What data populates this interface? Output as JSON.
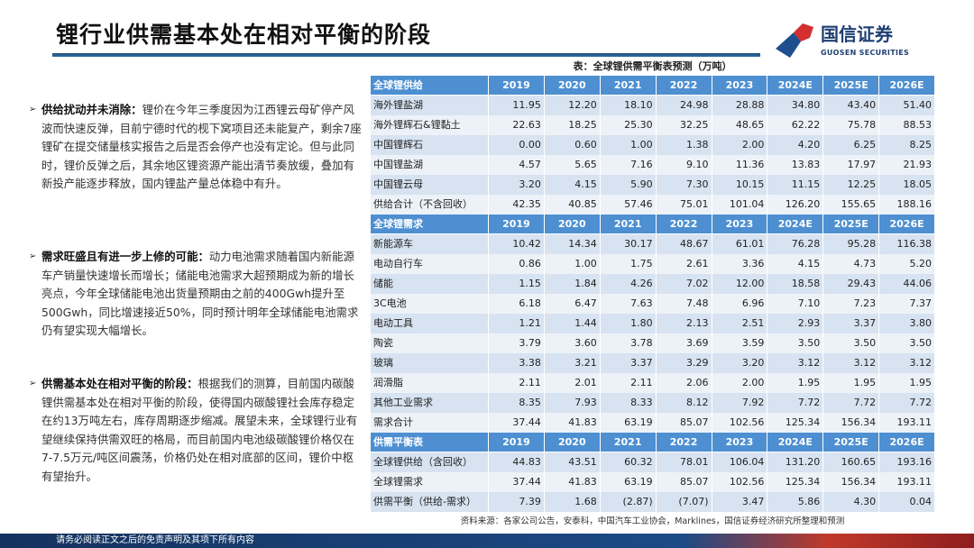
{
  "header": {
    "title": "锂行业供需基本处在相对平衡的阶段",
    "logo_cn": "国信证券",
    "logo_en": "GUOSEN SECURITIES"
  },
  "bullets": [
    {
      "bold": "供给扰动并未消除：",
      "text": "锂价在今年三季度因为江西锂云母矿停产风波而快速反弹，目前宁德时代的枧下窝项目还未能复产，剩余7座锂矿在提交储量核实报告之后是否会停产也没有定论。但与此同时，锂价反弹之后，其余地区锂资源产能出清节奏放缓，叠加有新投产能逐步释放，国内锂盐产量总体稳中有升。"
    },
    {
      "bold": "需求旺盛且有进一步上修的可能：",
      "text": "动力电池需求随着国内新能源车产销量快速增长而增长；储能电池需求大超预期成为新的增长亮点，今年全球储能电池出货量预期由之前的400Gwh提升至500Gwh，同比增速接近50%，同时预计明年全球储能电池需求仍有望实现大幅增长。"
    },
    {
      "bold": "供需基本处在相对平衡的阶段：",
      "text": "根据我们的测算，目前国内碳酸锂供需基本处在相对平衡的阶段，使得国内碳酸锂社会库存稳定在约13万吨左右，库存周期逐步缩减。展望未来，全球锂行业有望继续保持供需双旺的格局，而目前国内电池级碳酸锂价格仅在7-7.5万元/吨区间震荡，价格仍处在相对底部的区间，锂价中枢有望抬升。"
    }
  ],
  "table": {
    "caption": "表：全球锂供需平衡表预测（万吨）",
    "years": [
      "2019",
      "2020",
      "2021",
      "2022",
      "2023",
      "2024E",
      "2025E",
      "2026E"
    ],
    "sections": [
      {
        "title": "全球锂供给",
        "rows": [
          {
            "label": "海外锂盐湖",
            "values": [
              "11.95",
              "12.20",
              "18.10",
              "24.98",
              "28.88",
              "34.80",
              "43.40",
              "51.40"
            ]
          },
          {
            "label": "海外锂辉石&锂黏土",
            "values": [
              "22.63",
              "18.25",
              "25.30",
              "32.25",
              "48.65",
              "62.22",
              "75.78",
              "88.53"
            ]
          },
          {
            "label": "中国锂辉石",
            "values": [
              "0.00",
              "0.60",
              "1.00",
              "1.38",
              "2.00",
              "4.20",
              "6.25",
              "8.25"
            ]
          },
          {
            "label": "中国锂盐湖",
            "values": [
              "4.57",
              "5.65",
              "7.16",
              "9.10",
              "11.36",
              "13.83",
              "17.97",
              "21.93"
            ]
          },
          {
            "label": "中国锂云母",
            "values": [
              "3.20",
              "4.15",
              "5.90",
              "7.30",
              "10.15",
              "11.15",
              "12.25",
              "18.05"
            ]
          },
          {
            "label": "供给合计（不含回收）",
            "values": [
              "42.35",
              "40.85",
              "57.46",
              "75.01",
              "101.04",
              "126.20",
              "155.65",
              "188.16"
            ]
          }
        ]
      },
      {
        "title": "全球锂需求",
        "rows": [
          {
            "label": "新能源车",
            "values": [
              "10.42",
              "14.34",
              "30.17",
              "48.67",
              "61.01",
              "76.28",
              "95.28",
              "116.38"
            ]
          },
          {
            "label": "电动自行车",
            "values": [
              "0.86",
              "1.00",
              "1.75",
              "2.61",
              "3.36",
              "4.15",
              "4.73",
              "5.20"
            ]
          },
          {
            "label": "储能",
            "values": [
              "1.15",
              "1.84",
              "4.26",
              "7.02",
              "12.00",
              "18.58",
              "29.43",
              "44.06"
            ]
          },
          {
            "label": "3C电池",
            "values": [
              "6.18",
              "6.47",
              "7.63",
              "7.48",
              "6.96",
              "7.10",
              "7.23",
              "7.37"
            ]
          },
          {
            "label": "电动工具",
            "values": [
              "1.21",
              "1.44",
              "1.80",
              "2.13",
              "2.51",
              "2.93",
              "3.37",
              "3.80"
            ]
          },
          {
            "label": "陶瓷",
            "values": [
              "3.79",
              "3.60",
              "3.78",
              "3.69",
              "3.59",
              "3.50",
              "3.50",
              "3.50"
            ]
          },
          {
            "label": "玻璃",
            "values": [
              "3.38",
              "3.21",
              "3.37",
              "3.29",
              "3.20",
              "3.12",
              "3.12",
              "3.12"
            ]
          },
          {
            "label": "润滑脂",
            "values": [
              "2.11",
              "2.01",
              "2.11",
              "2.06",
              "2.00",
              "1.95",
              "1.95",
              "1.95"
            ]
          },
          {
            "label": "其他工业需求",
            "values": [
              "8.35",
              "7.93",
              "8.33",
              "8.12",
              "7.92",
              "7.72",
              "7.72",
              "7.72"
            ]
          },
          {
            "label": "需求合计",
            "values": [
              "37.44",
              "41.83",
              "63.19",
              "85.07",
              "102.56",
              "125.34",
              "156.34",
              "193.11"
            ]
          }
        ]
      },
      {
        "title": "供需平衡表",
        "rows": [
          {
            "label": "全球锂供给（含回收）",
            "values": [
              "44.83",
              "43.51",
              "60.32",
              "78.01",
              "106.04",
              "131.20",
              "160.65",
              "193.16"
            ]
          },
          {
            "label": "全球锂需求",
            "values": [
              "37.44",
              "41.83",
              "63.19",
              "85.07",
              "102.56",
              "125.34",
              "156.34",
              "193.11"
            ]
          },
          {
            "label": "供需平衡（供给-需求）",
            "values": [
              "7.39",
              "1.68",
              "(2.87)",
              "(7.07)",
              "3.47",
              "5.86",
              "4.30",
              "0.04"
            ]
          }
        ]
      }
    ],
    "source": "资料来源：各家公司公告，安泰科，中国汽车工业协会，Marklines，国信证券经济研究所整理和预测"
  },
  "footer": {
    "disclaimer": "请务必阅读正文之后的免责声明及其项下所有内容"
  },
  "colors": {
    "header_blue": "#4d8fd1",
    "row_dark": "#d7e3f1",
    "row_light": "#edf2f8",
    "brand_navy": "#1f3f73",
    "brand_red": "#d32f2f"
  }
}
